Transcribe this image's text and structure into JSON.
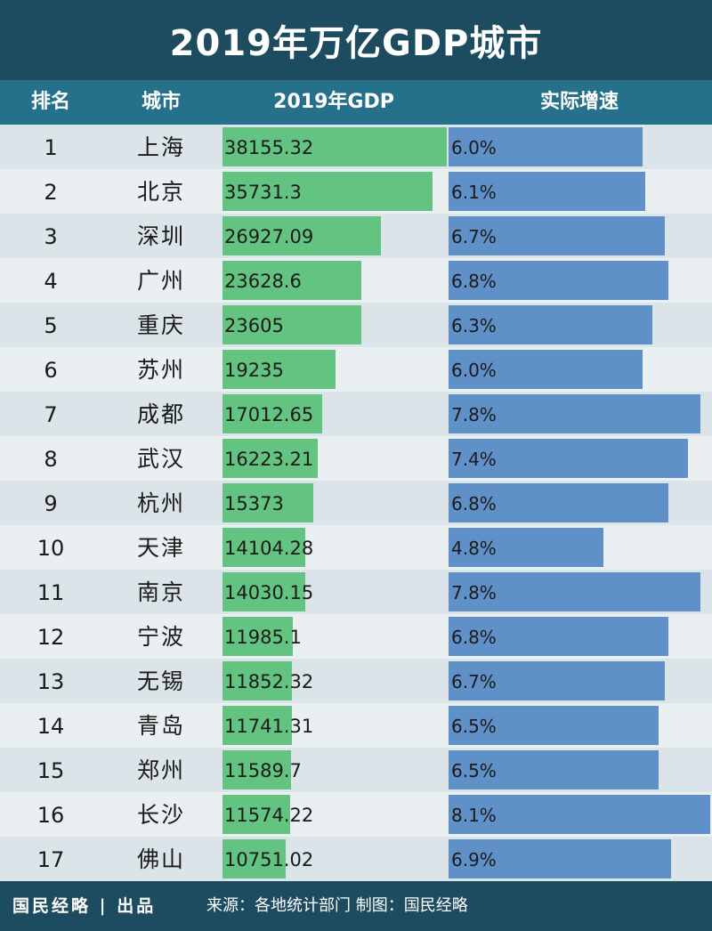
{
  "title": "2019年万亿GDP城市",
  "headers": {
    "rank": "排名",
    "city": "城市",
    "gdp": "2019年GDP",
    "growth": "实际增速"
  },
  "colors": {
    "gdp_bar": "#63c381",
    "growth_bar": "#6090c8",
    "header_bg": "#25708a",
    "title_bg": "#1d4b60"
  },
  "chart_data": {
    "type": "table",
    "columns": [
      "排名",
      "城市",
      "2019年GDP",
      "实际增速"
    ],
    "rows": [
      {
        "rank": "1",
        "city": "上海",
        "gdp": "38155.32",
        "gdp_value": 38155.32,
        "growth": "6.0%",
        "growth_value": 6.0
      },
      {
        "rank": "2",
        "city": "北京",
        "gdp": "35731.3",
        "gdp_value": 35731.3,
        "growth": "6.1%",
        "growth_value": 6.1
      },
      {
        "rank": "3",
        "city": "深圳",
        "gdp": "26927.09",
        "gdp_value": 26927.09,
        "growth": "6.7%",
        "growth_value": 6.7
      },
      {
        "rank": "4",
        "city": "广州",
        "gdp": "23628.6",
        "gdp_value": 23628.6,
        "growth": "6.8%",
        "growth_value": 6.8
      },
      {
        "rank": "5",
        "city": "重庆",
        "gdp": "23605",
        "gdp_value": 23605,
        "growth": "6.3%",
        "growth_value": 6.3
      },
      {
        "rank": "6",
        "city": "苏州",
        "gdp": "19235",
        "gdp_value": 19235,
        "growth": "6.0%",
        "growth_value": 6.0
      },
      {
        "rank": "7",
        "city": "成都",
        "gdp": "17012.65",
        "gdp_value": 17012.65,
        "growth": "7.8%",
        "growth_value": 7.8
      },
      {
        "rank": "8",
        "city": "武汉",
        "gdp": "16223.21",
        "gdp_value": 16223.21,
        "growth": "7.4%",
        "growth_value": 7.4
      },
      {
        "rank": "9",
        "city": "杭州",
        "gdp": "15373",
        "gdp_value": 15373,
        "growth": "6.8%",
        "growth_value": 6.8
      },
      {
        "rank": "10",
        "city": "天津",
        "gdp": "14104.28",
        "gdp_value": 14104.28,
        "growth": "4.8%",
        "growth_value": 4.8
      },
      {
        "rank": "11",
        "city": "南京",
        "gdp": "14030.15",
        "gdp_value": 14030.15,
        "growth": "7.8%",
        "growth_value": 7.8
      },
      {
        "rank": "12",
        "city": "宁波",
        "gdp": "11985.1",
        "gdp_value": 11985.1,
        "growth": "6.8%",
        "growth_value": 6.8
      },
      {
        "rank": "13",
        "city": "无锡",
        "gdp": "11852.32",
        "gdp_value": 11852.32,
        "growth": "6.7%",
        "growth_value": 6.7
      },
      {
        "rank": "14",
        "city": "青岛",
        "gdp": "11741.31",
        "gdp_value": 11741.31,
        "growth": "6.5%",
        "growth_value": 6.5
      },
      {
        "rank": "15",
        "city": "郑州",
        "gdp": "11589.7",
        "gdp_value": 11589.7,
        "growth": "6.5%",
        "growth_value": 6.5
      },
      {
        "rank": "16",
        "city": "长沙",
        "gdp": "11574.22",
        "gdp_value": 11574.22,
        "growth": "8.1%",
        "growth_value": 8.1
      },
      {
        "rank": "17",
        "city": "佛山",
        "gdp": "10751.02",
        "gdp_value": 10751.02,
        "growth": "6.9%",
        "growth_value": 6.9
      }
    ]
  },
  "footer": {
    "brand": "国民经略",
    "divider": "|",
    "brand_suffix": "出品",
    "source": "来源：各地统计部门 制图：国民经略"
  }
}
